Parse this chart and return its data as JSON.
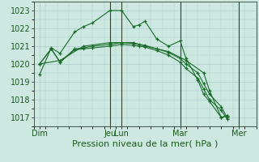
{
  "background_color": "#cce8e0",
  "grid_color": "#aacccc",
  "line_color": "#1a6b2a",
  "marker_color": "#1a6b2a",
  "xlabel": "Pression niveau de la mer( hPa )",
  "ylim": [
    1016.5,
    1023.5
  ],
  "yticks": [
    1017,
    1018,
    1019,
    1020,
    1021,
    1022,
    1023
  ],
  "xtick_labels": [
    "Dim",
    "Jeu",
    "Lun",
    "Mar",
    "Mer"
  ],
  "xtick_positions": [
    0,
    48,
    56,
    96,
    136
  ],
  "xlim": [
    -4,
    148
  ],
  "series": [
    {
      "x": [
        0,
        8,
        14,
        24,
        30,
        36,
        48,
        56,
        64,
        68,
        72,
        80,
        88,
        96,
        100,
        108,
        112,
        116,
        124,
        128
      ],
      "y": [
        1019.4,
        1020.9,
        1020.6,
        1021.8,
        1022.1,
        1022.3,
        1023.0,
        1023.0,
        1022.1,
        1022.2,
        1022.4,
        1021.4,
        1021.0,
        1021.3,
        1020.3,
        1019.1,
        1018.3,
        1017.9,
        1017.0,
        1017.1
      ]
    },
    {
      "x": [
        0,
        8,
        14,
        24,
        30,
        36,
        48,
        56,
        64,
        68,
        72,
        80,
        88,
        96,
        100,
        108,
        112,
        116,
        124,
        128
      ],
      "y": [
        1020.0,
        1020.85,
        1020.1,
        1020.85,
        1020.9,
        1021.0,
        1021.1,
        1021.2,
        1021.15,
        1021.1,
        1021.05,
        1020.85,
        1020.65,
        1020.3,
        1020.0,
        1019.5,
        1018.9,
        1018.3,
        1017.6,
        1017.0
      ]
    },
    {
      "x": [
        0,
        8,
        14,
        24,
        30,
        36,
        48,
        56,
        64,
        68,
        72,
        80,
        88,
        96,
        100,
        108,
        112,
        116,
        124,
        128
      ],
      "y": [
        1020.0,
        1020.85,
        1020.1,
        1020.8,
        1020.85,
        1020.9,
        1021.0,
        1021.1,
        1021.05,
        1021.0,
        1020.95,
        1020.75,
        1020.5,
        1020.1,
        1019.75,
        1019.2,
        1018.6,
        1018.0,
        1017.4,
        1016.9
      ]
    },
    {
      "x": [
        0,
        14,
        30,
        48,
        64,
        72,
        88,
        100,
        112,
        116,
        124,
        128
      ],
      "y": [
        1020.0,
        1020.2,
        1021.0,
        1021.2,
        1021.2,
        1021.0,
        1020.7,
        1020.2,
        1019.5,
        1018.5,
        1017.0,
        1017.1
      ]
    }
  ],
  "vlines": [
    48,
    56,
    96,
    136
  ],
  "vline_color": "#334433",
  "tick_label_color": "#1a5a1a",
  "xlabel_color": "#1a5a1a",
  "xlabel_fontsize": 8,
  "ytick_fontsize": 7,
  "xtick_fontsize": 7,
  "figsize": [
    3.2,
    2.0
  ],
  "dpi": 100
}
